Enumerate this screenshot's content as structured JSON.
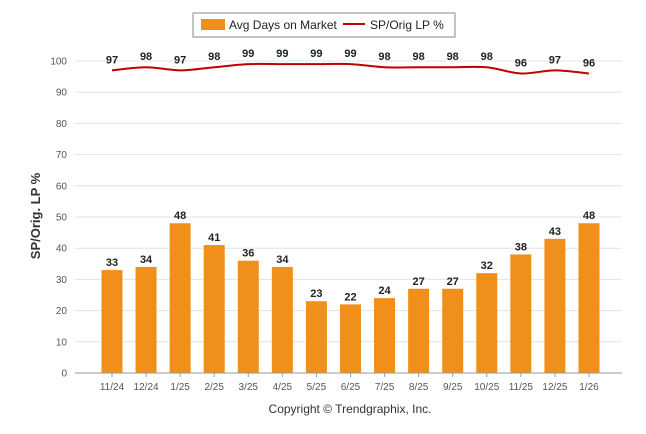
{
  "chart_data": {
    "type": "bar",
    "categories": [
      "11/24",
      "12/24",
      "1/25",
      "2/25",
      "3/25",
      "4/25",
      "5/25",
      "6/25",
      "7/25",
      "8/25",
      "9/25",
      "10/25",
      "11/25",
      "12/25",
      "1/26"
    ],
    "series": [
      {
        "name": "Avg Days on Market",
        "type": "bar",
        "color": "#f0901a",
        "values": [
          33,
          34,
          48,
          41,
          36,
          34,
          23,
          22,
          24,
          27,
          27,
          32,
          38,
          43,
          48
        ]
      },
      {
        "name": "SP/Orig LP %",
        "type": "line",
        "color": "#c00000",
        "values": [
          97,
          98,
          97,
          98,
          99,
          99,
          99,
          99,
          98,
          98,
          98,
          98,
          96,
          97,
          96
        ]
      }
    ],
    "ylabel": "SP/Orig. LP %",
    "ylim": [
      0,
      100
    ],
    "yticks": [
      0,
      10,
      20,
      30,
      40,
      50,
      60,
      70,
      80,
      90,
      100
    ],
    "grid": true,
    "legend_position": "top-center",
    "data_labels": true
  },
  "footer": {
    "copyright": "Copyright © Trendgraphix, Inc."
  }
}
